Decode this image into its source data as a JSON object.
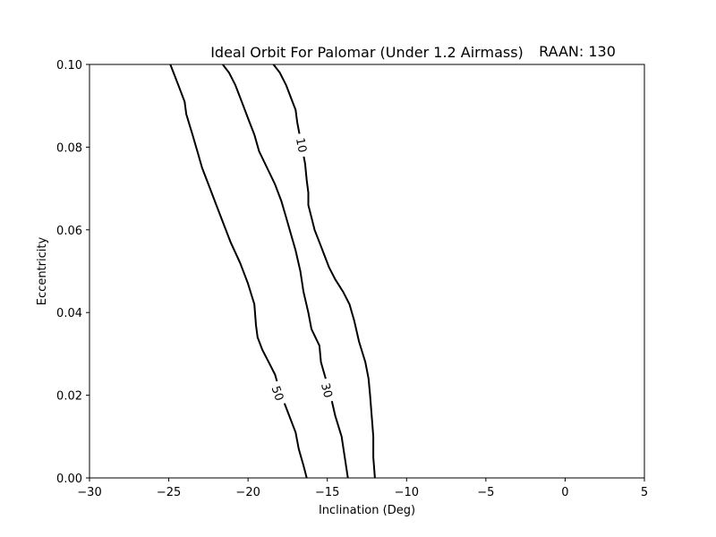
{
  "chart_data": {
    "type": "line",
    "title": "Ideal Orbit For Palomar (Under 1.2 Airmass)",
    "subtitle": "RAAN: 130",
    "xlabel": "Inclination (Deg)",
    "ylabel": "Eccentricity",
    "xlim": [
      -30,
      5
    ],
    "ylim": [
      0.0,
      0.1
    ],
    "xticks": [
      "−30",
      "−25",
      "−20",
      "−15",
      "−10",
      "−5",
      "0",
      "5"
    ],
    "xtick_values": [
      -30,
      -25,
      -20,
      -15,
      -10,
      -5,
      0,
      5
    ],
    "yticks": [
      "0.00",
      "0.02",
      "0.04",
      "0.06",
      "0.08",
      "0.10"
    ],
    "ytick_values": [
      0.0,
      0.02,
      0.04,
      0.06,
      0.08,
      0.1
    ],
    "grid": false,
    "line_color": "#000000",
    "series": [
      {
        "name": "10",
        "label_at": {
          "x": -16.6,
          "y": 0.0805
        },
        "points": [
          [
            -12.0,
            0.0
          ],
          [
            -12.1,
            0.005
          ],
          [
            -12.1,
            0.01
          ],
          [
            -12.2,
            0.015
          ],
          [
            -12.3,
            0.02
          ],
          [
            -12.4,
            0.024
          ],
          [
            -12.6,
            0.028
          ],
          [
            -13.0,
            0.033
          ],
          [
            -13.3,
            0.038
          ],
          [
            -13.6,
            0.042
          ],
          [
            -14.0,
            0.045
          ],
          [
            -14.5,
            0.048
          ],
          [
            -14.9,
            0.051
          ],
          [
            -15.2,
            0.054
          ],
          [
            -15.5,
            0.057
          ],
          [
            -15.8,
            0.06
          ],
          [
            -16.0,
            0.063
          ],
          [
            -16.2,
            0.066
          ],
          [
            -16.2,
            0.069
          ],
          [
            -16.3,
            0.072
          ],
          [
            -16.4,
            0.076
          ],
          [
            -16.6,
            0.08
          ],
          [
            -16.9,
            0.086
          ],
          [
            -17.0,
            0.089
          ],
          [
            -17.3,
            0.092
          ],
          [
            -17.6,
            0.095
          ],
          [
            -18.0,
            0.098
          ],
          [
            -18.4,
            0.1
          ]
        ]
      },
      {
        "name": "30",
        "label_at": {
          "x": -15.0,
          "y": 0.0212
        },
        "points": [
          [
            -13.7,
            0.0
          ],
          [
            -13.9,
            0.005
          ],
          [
            -14.1,
            0.01
          ],
          [
            -14.5,
            0.015
          ],
          [
            -14.8,
            0.02
          ],
          [
            -15.1,
            0.024
          ],
          [
            -15.4,
            0.028
          ],
          [
            -15.5,
            0.032
          ],
          [
            -16.0,
            0.036
          ],
          [
            -16.2,
            0.04
          ],
          [
            -16.5,
            0.045
          ],
          [
            -16.7,
            0.05
          ],
          [
            -17.0,
            0.055
          ],
          [
            -17.3,
            0.059
          ],
          [
            -17.6,
            0.063
          ],
          [
            -17.9,
            0.067
          ],
          [
            -18.3,
            0.071
          ],
          [
            -18.8,
            0.075
          ],
          [
            -19.3,
            0.079
          ],
          [
            -19.6,
            0.083
          ],
          [
            -20.0,
            0.087
          ],
          [
            -20.4,
            0.091
          ],
          [
            -20.8,
            0.095
          ],
          [
            -21.2,
            0.098
          ],
          [
            -21.6,
            0.1
          ]
        ]
      },
      {
        "name": "50",
        "label_at": {
          "x": -18.1,
          "y": 0.0205
        },
        "points": [
          [
            -16.3,
            0.0
          ],
          [
            -16.5,
            0.003
          ],
          [
            -16.8,
            0.007
          ],
          [
            -17.0,
            0.011
          ],
          [
            -17.3,
            0.014
          ],
          [
            -17.6,
            0.017
          ],
          [
            -18.0,
            0.021
          ],
          [
            -18.3,
            0.025
          ],
          [
            -18.7,
            0.028
          ],
          [
            -19.1,
            0.031
          ],
          [
            -19.4,
            0.034
          ],
          [
            -19.5,
            0.037
          ],
          [
            -19.6,
            0.042
          ],
          [
            -20.0,
            0.047
          ],
          [
            -20.5,
            0.052
          ],
          [
            -21.1,
            0.057
          ],
          [
            -21.6,
            0.062
          ],
          [
            -22.0,
            0.066
          ],
          [
            -22.5,
            0.071
          ],
          [
            -22.9,
            0.075
          ],
          [
            -23.2,
            0.079
          ],
          [
            -23.5,
            0.083
          ],
          [
            -23.9,
            0.088
          ],
          [
            -24.0,
            0.091
          ],
          [
            -24.3,
            0.094
          ],
          [
            -24.6,
            0.097
          ],
          [
            -24.9,
            0.1
          ]
        ]
      }
    ]
  }
}
